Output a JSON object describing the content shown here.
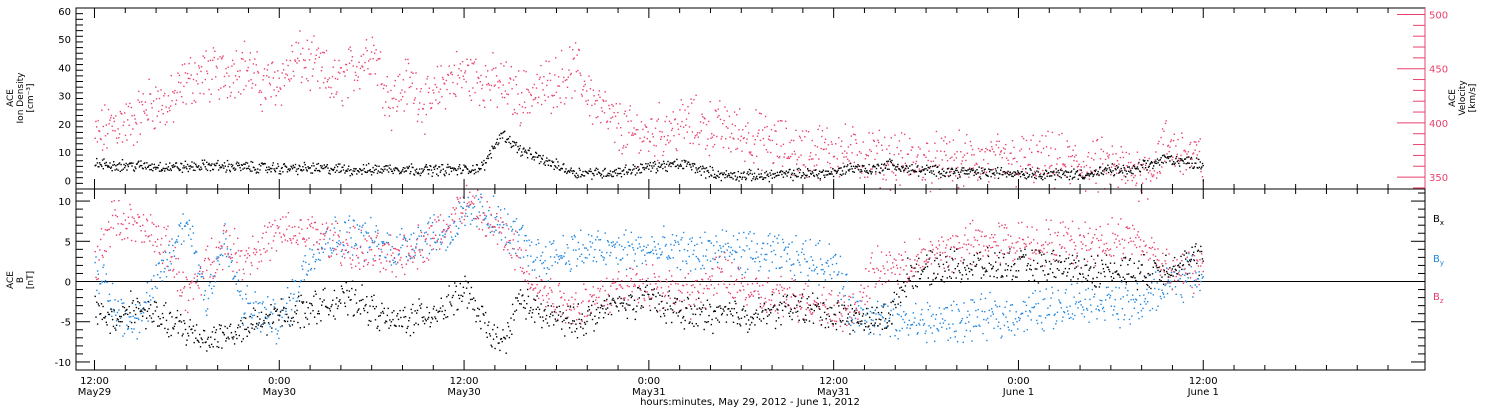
{
  "colors": {
    "black": "#000000",
    "pink": "#e8426d",
    "blue": "#1f86de"
  },
  "chart_data": [
    {
      "type": "scatter",
      "panel": "top",
      "ylabel_lines": [
        "ACE",
        "Ion Density",
        "[cm⁻³]"
      ],
      "ylabel2_lines": [
        "ACE",
        "Velocity",
        "[km/s]"
      ],
      "ylim": [
        -3,
        61
      ],
      "yticks": [
        0,
        10,
        20,
        30,
        40,
        50,
        60
      ],
      "ylim_right": [
        339,
        506
      ],
      "yticks_right": [
        350,
        400,
        450,
        500
      ],
      "series": [
        {
          "axis": "left",
          "color": "#000000",
          "x": [
            0.0,
            0.1,
            0.2,
            0.25,
            0.3,
            0.4,
            0.5,
            0.6,
            0.7,
            0.75,
            0.8,
            0.9,
            1.0,
            1.05,
            1.1,
            1.15,
            1.2,
            1.3,
            1.4,
            1.5,
            1.6,
            1.65,
            1.7,
            1.8,
            1.9,
            2.0,
            2.05,
            2.1,
            2.15,
            2.2,
            2.3,
            2.4,
            2.5,
            2.6,
            2.7,
            2.75,
            2.8,
            2.9,
            3.0
          ],
          "values": [
            6,
            5.5,
            5,
            5,
            5.5,
            5,
            4.5,
            4.5,
            4,
            4,
            4.5,
            4,
            4,
            5,
            17,
            11,
            8,
            3,
            3,
            5,
            6,
            3.5,
            2,
            2,
            2.5,
            3,
            5,
            4,
            6,
            4,
            3.5,
            3,
            3,
            2.5,
            2.5,
            4,
            3.5,
            8,
            6
          ]
        },
        {
          "axis": "right",
          "color": "#e8426d",
          "x": [
            0.0,
            0.05,
            0.1,
            0.15,
            0.2,
            0.25,
            0.3,
            0.35,
            0.4,
            0.45,
            0.5,
            0.55,
            0.6,
            0.65,
            0.7,
            0.75,
            0.8,
            0.85,
            0.9,
            0.95,
            1.0,
            1.05,
            1.1,
            1.15,
            1.2,
            1.25,
            1.3,
            1.35,
            1.4,
            1.45,
            1.5,
            1.6,
            1.7,
            1.8,
            1.9,
            2.0,
            2.1,
            2.2,
            2.3,
            2.4,
            2.5,
            2.6,
            2.7,
            2.75,
            2.8,
            2.85,
            2.9,
            3.0
          ],
          "values": [
            385,
            400,
            400,
            420,
            415,
            440,
            445,
            445,
            455,
            435,
            440,
            460,
            450,
            435,
            450,
            470,
            420,
            440,
            415,
            440,
            445,
            440,
            435,
            425,
            430,
            440,
            450,
            420,
            400,
            390,
            390,
            400,
            395,
            385,
            375,
            375,
            370,
            365,
            365,
            365,
            365,
            365,
            360,
            360,
            355,
            357,
            380,
            365
          ]
        }
      ]
    },
    {
      "type": "scatter",
      "panel": "bottom",
      "ylabel_lines": [
        "ACE",
        "B",
        "[nT]"
      ],
      "ylim": [
        -11,
        11.5
      ],
      "yticks": [
        -10,
        -5,
        0,
        5,
        10
      ],
      "zero_line": 0,
      "series": [
        {
          "name": "Bx",
          "color": "#000000",
          "x": [
            0.0,
            0.05,
            0.1,
            0.15,
            0.2,
            0.3,
            0.4,
            0.5,
            0.6,
            0.7,
            0.8,
            0.9,
            0.95,
            1.0,
            1.05,
            1.1,
            1.15,
            1.2,
            1.3,
            1.4,
            1.5,
            1.6,
            1.7,
            1.8,
            1.9,
            2.0,
            2.1,
            2.15,
            2.2,
            2.3,
            2.4,
            2.5,
            2.6,
            2.7,
            2.8,
            2.85,
            2.9,
            3.0
          ],
          "values": [
            -3,
            -5,
            -3,
            -4,
            -5,
            -7,
            -6,
            -4,
            -3,
            -2,
            -5,
            -4,
            -3,
            -1,
            -5,
            -8,
            -2,
            -4,
            -5,
            -3,
            -2,
            -4,
            -4,
            -4,
            -3,
            -4,
            -5,
            -4,
            1,
            2,
            2,
            2,
            2,
            1.5,
            1.5,
            1,
            2,
            3
          ]
        },
        {
          "name": "By",
          "color": "#1f86de",
          "x": [
            0.0,
            0.05,
            0.1,
            0.15,
            0.2,
            0.25,
            0.3,
            0.35,
            0.4,
            0.5,
            0.6,
            0.7,
            0.8,
            0.9,
            0.95,
            1.0,
            1.05,
            1.1,
            1.15,
            1.2,
            1.3,
            1.4,
            1.5,
            1.6,
            1.7,
            1.8,
            1.9,
            2.0,
            2.05,
            2.1,
            2.15,
            2.2,
            2.3,
            2.4,
            2.5,
            2.6,
            2.7,
            2.8,
            2.85,
            2.9,
            3.0
          ],
          "values": [
            2,
            -3,
            -5,
            -2,
            3,
            8,
            -2,
            5,
            -3,
            -5,
            5,
            6,
            4,
            6,
            6,
            8,
            9,
            7,
            5,
            3,
            4,
            4,
            4,
            3.5,
            4,
            3.5,
            3,
            2.5,
            -4,
            -4,
            -5,
            -5,
            -5,
            -4.5,
            -4,
            -3,
            -2,
            -3,
            -2,
            0,
            1
          ]
        },
        {
          "name": "Bz",
          "color": "#e8426d",
          "x": [
            0.0,
            0.05,
            0.1,
            0.15,
            0.2,
            0.25,
            0.3,
            0.35,
            0.4,
            0.5,
            0.6,
            0.7,
            0.8,
            0.9,
            0.95,
            1.0,
            1.05,
            1.1,
            1.15,
            1.2,
            1.25,
            1.3,
            1.4,
            1.5,
            1.6,
            1.7,
            1.8,
            1.9,
            2.0,
            2.05,
            2.1,
            2.15,
            2.2,
            2.3,
            2.4,
            2.5,
            2.6,
            2.7,
            2.8,
            2.85,
            2.9,
            3.0
          ],
          "values": [
            2,
            8,
            7,
            6,
            4,
            -2,
            2,
            5,
            3,
            6,
            6,
            4,
            3,
            5,
            7,
            10,
            8,
            6,
            3,
            -1,
            -2,
            -3,
            -1,
            0,
            -2,
            1,
            -2,
            -2,
            -3,
            -4,
            1,
            2,
            2,
            4,
            5,
            5,
            5,
            5,
            5.5,
            4,
            2,
            1
          ]
        }
      ]
    }
  ],
  "x_axis": {
    "tick_top": [
      "12:00",
      "0:00",
      "12:00",
      "0:00",
      "12:00",
      "0:00",
      "12:00"
    ],
    "tick_bottom": [
      "May29",
      "May30",
      "May30",
      "May31",
      "May31",
      "June 1",
      "June 1"
    ],
    "title": "hours:minutes, May 29, 2012 - June  1, 2012",
    "range": [
      -0.05,
      3.6
    ]
  },
  "legend": [
    {
      "label": "Bx",
      "base": "B",
      "sub": "x",
      "color": "#000000"
    },
    {
      "label": "By",
      "base": "B",
      "sub": "y",
      "color": "#1f86de"
    },
    {
      "label": "Bz",
      "base": "B",
      "sub": "z",
      "color": "#e8426d"
    }
  ]
}
